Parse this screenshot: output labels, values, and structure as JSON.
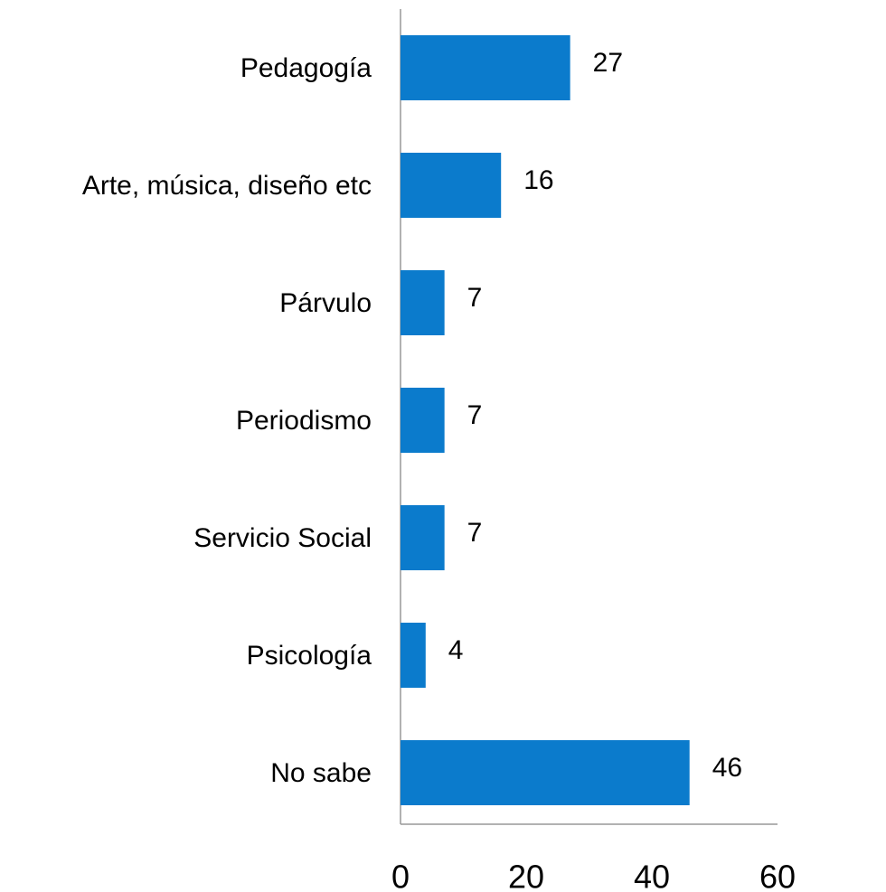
{
  "chart_data": {
    "type": "bar",
    "orientation": "horizontal",
    "categories": [
      "Pedagogía",
      "Arte, música, diseño etc",
      "Párvulo",
      "Periodismo",
      "Servicio Social",
      "Psicología",
      "No sabe"
    ],
    "values": [
      27,
      16,
      7,
      7,
      7,
      4,
      46
    ],
    "color": "#0b7bcc",
    "xlim": [
      0,
      60
    ],
    "xticks": [
      0,
      20,
      40,
      60
    ],
    "grid": false
  }
}
